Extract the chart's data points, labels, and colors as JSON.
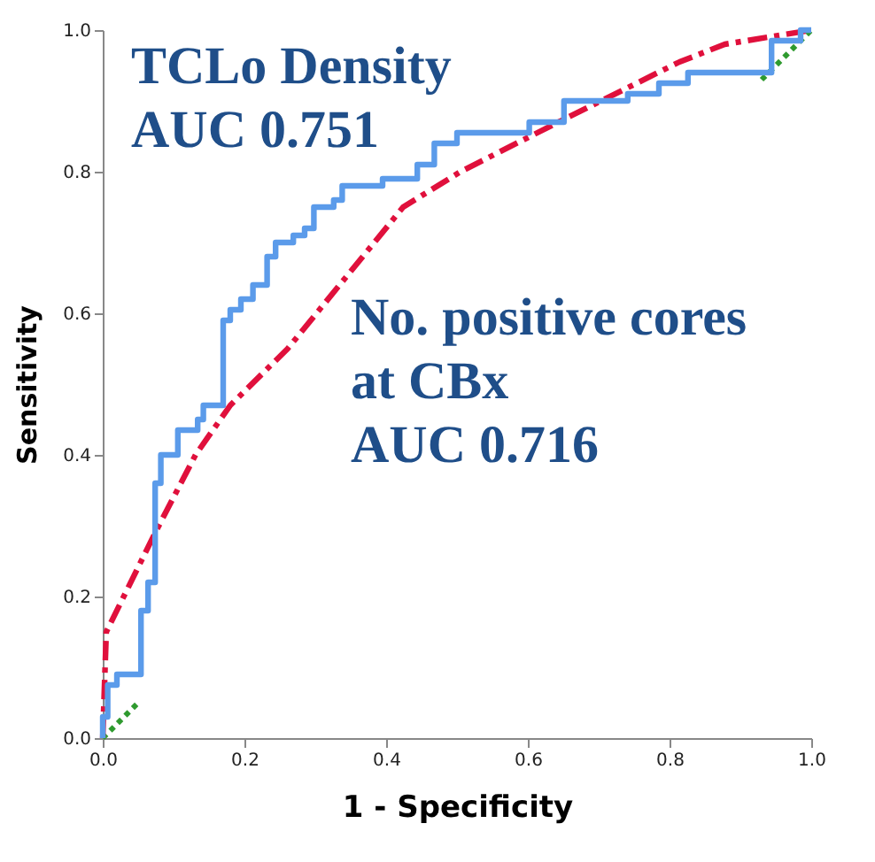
{
  "chart_data": {
    "type": "line",
    "xlabel": "1 - Specificity",
    "ylabel": "Sensitivity",
    "xlim": [
      0,
      1
    ],
    "ylim": [
      0,
      1
    ],
    "xticks": [
      {
        "value": 0,
        "label": "0.0"
      },
      {
        "value": 0.2,
        "label": "0.2"
      },
      {
        "value": 0.4,
        "label": "0.4"
      },
      {
        "value": 0.6,
        "label": "0.6"
      },
      {
        "value": 0.8,
        "label": "0.8"
      },
      {
        "value": 1,
        "label": "1.0"
      }
    ],
    "yticks": [
      {
        "value": 0,
        "label": "0.0"
      },
      {
        "value": 0.2,
        "label": "0.2"
      },
      {
        "value": 0.4,
        "label": "0.4"
      },
      {
        "value": 0.6,
        "label": "0.6"
      },
      {
        "value": 0.8,
        "label": "0.8"
      },
      {
        "value": 1,
        "label": "1.0"
      }
    ],
    "grid": false,
    "marker": "none",
    "annotations": [
      "TCLo Density\nAUC 0.751",
      "No. positive cores\nat CBx\nAUC 0.716"
    ],
    "series": [
      {
        "color": "#2e9a2e",
        "line_style": "dotted",
        "x": [
          0,
          0.05,
          0.5,
          0.93,
          1
        ],
        "values": [
          0,
          0.05,
          null,
          0.93,
          1
        ]
      },
      {
        "color": "#e0103c",
        "line_style": "dashed",
        "x": [
          0,
          0.005,
          0.074,
          0.131,
          0.18,
          0.261,
          0.424,
          0.505,
          0.643,
          0.814,
          0.878,
          1
        ],
        "values": [
          0,
          0.15,
          0.29,
          0.4,
          0.47,
          0.55,
          0.75,
          0.8,
          0.87,
          0.955,
          0.98,
          1
        ]
      },
      {
        "color": "#5b9bea",
        "line_style": "solid",
        "x": [
          0,
          0,
          0.007,
          0.007,
          0.02,
          0.02,
          0.054,
          0.054,
          0.064,
          0.064,
          0.074,
          0.074,
          0.082,
          0.082,
          0.106,
          0.106,
          0.134,
          0.134,
          0.142,
          0.142,
          0.17,
          0.17,
          0.18,
          0.18,
          0.195,
          0.195,
          0.212,
          0.212,
          0.232,
          0.232,
          0.244,
          0.244,
          0.269,
          0.269,
          0.285,
          0.285,
          0.298,
          0.298,
          0.326,
          0.326,
          0.338,
          0.338,
          0.395,
          0.395,
          0.444,
          0.444,
          0.468,
          0.468,
          0.5,
          0.5,
          0.602,
          0.602,
          0.651,
          0.651,
          0.741,
          0.741,
          0.785,
          0.785,
          0.826,
          0.826,
          0.944,
          0.944,
          0.985,
          0.985,
          1
        ],
        "values": [
          0,
          0.03,
          0.03,
          0.075,
          0.075,
          0.09,
          0.09,
          0.18,
          0.18,
          0.22,
          0.22,
          0.36,
          0.36,
          0.4,
          0.4,
          0.435,
          0.435,
          0.45,
          0.45,
          0.47,
          0.47,
          0.59,
          0.59,
          0.605,
          0.605,
          0.62,
          0.62,
          0.64,
          0.64,
          0.68,
          0.68,
          0.7,
          0.7,
          0.71,
          0.71,
          0.72,
          0.72,
          0.75,
          0.75,
          0.76,
          0.76,
          0.78,
          0.78,
          0.79,
          0.79,
          0.81,
          0.81,
          0.84,
          0.84,
          0.855,
          0.855,
          0.87,
          0.87,
          0.9,
          0.9,
          0.91,
          0.91,
          0.925,
          0.925,
          0.94,
          0.94,
          0.985,
          0.985,
          1,
          1
        ]
      }
    ]
  }
}
